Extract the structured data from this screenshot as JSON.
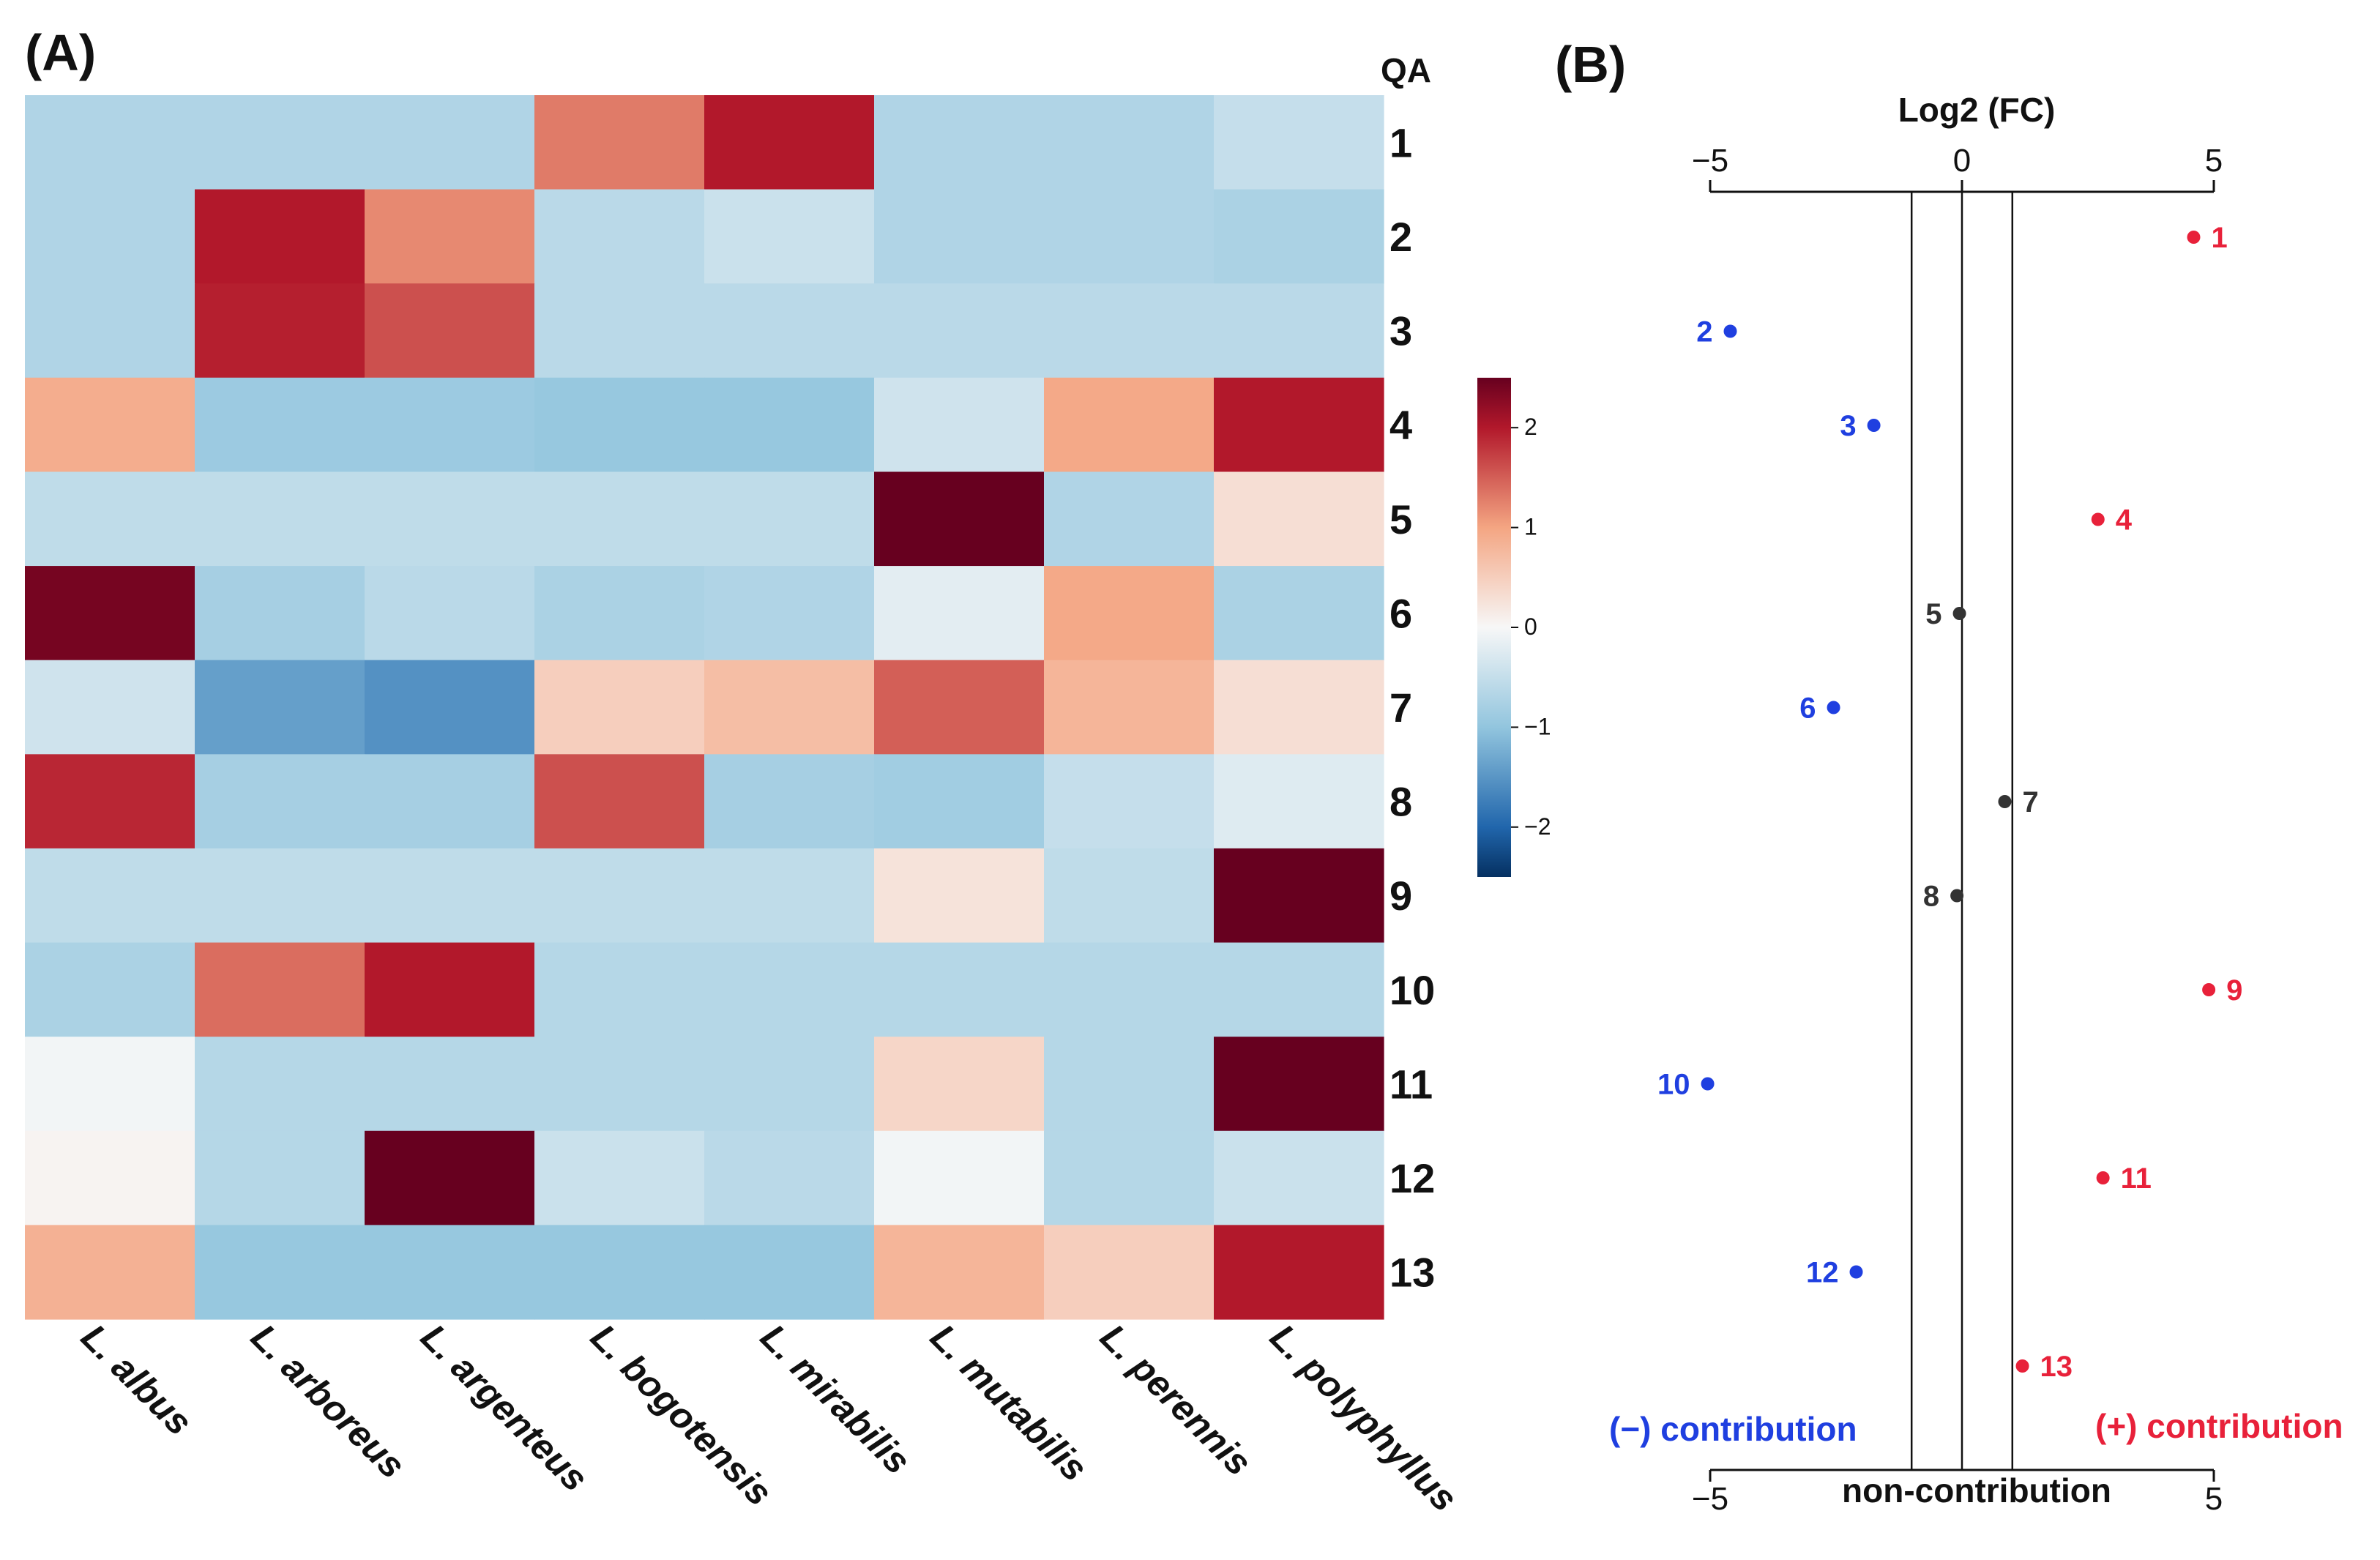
{
  "panel_a": {
    "label": "(A)",
    "row_header": "QA",
    "colorbar_ticks": [
      "2",
      "1",
      "0",
      "−1",
      "−2"
    ]
  },
  "panel_b": {
    "label": "(B)",
    "axis_title": "Log2 (FC)",
    "top_tick_labels": [
      "−5",
      "0",
      "5"
    ],
    "bottom_tick_labels": [
      "−5",
      "5"
    ],
    "neg_label": "(−) contribution",
    "pos_label": "(+) contribution",
    "non_label": "non-contribution"
  },
  "colors": {
    "negative": "#1f3fe0",
    "positive": "#e8213a",
    "neutral": "#333333"
  },
  "chart_data": [
    {
      "type": "heatmap",
      "title": "",
      "columns": [
        "L. albus",
        "L. arboreus",
        "L. argenteus",
        "L. bogotensis",
        "L. mirabilis",
        "L. mutabilis",
        "L. perennis",
        "L. polyphyllus"
      ],
      "rows": [
        "1",
        "2",
        "3",
        "4",
        "5",
        "6",
        "7",
        "8",
        "9",
        "10",
        "11",
        "12",
        "13"
      ],
      "values": [
        [
          -0.7,
          -0.7,
          -0.7,
          1.3,
          2.0,
          -0.7,
          -0.7,
          -0.5
        ],
        [
          -0.7,
          2.0,
          1.2,
          -0.6,
          -0.45,
          -0.7,
          -0.7,
          -0.75
        ],
        [
          -0.7,
          1.95,
          1.6,
          -0.6,
          -0.6,
          -0.6,
          -0.6,
          -0.6
        ],
        [
          0.9,
          -0.9,
          -0.9,
          -0.95,
          -0.95,
          -0.4,
          0.95,
          2.0
        ],
        [
          -0.55,
          -0.55,
          -0.55,
          -0.55,
          -0.55,
          2.5,
          -0.7,
          0.3
        ],
        [
          2.4,
          -0.8,
          -0.6,
          -0.75,
          -0.7,
          -0.2,
          0.95,
          -0.75
        ],
        [
          -0.4,
          -1.4,
          -1.55,
          0.5,
          0.7,
          1.5,
          0.8,
          0.3
        ],
        [
          1.9,
          -0.8,
          -0.8,
          1.6,
          -0.8,
          -0.85,
          -0.5,
          -0.25
        ],
        [
          -0.55,
          -0.55,
          -0.55,
          -0.55,
          -0.55,
          0.25,
          -0.55,
          2.5
        ],
        [
          -0.75,
          1.4,
          2.0,
          -0.65,
          -0.65,
          -0.65,
          -0.65,
          -0.65
        ],
        [
          -0.05,
          -0.65,
          -0.65,
          -0.65,
          -0.65,
          0.4,
          -0.65,
          2.5
        ],
        [
          0.05,
          -0.65,
          2.5,
          -0.45,
          -0.6,
          -0.05,
          -0.65,
          -0.45
        ],
        [
          0.85,
          -0.95,
          -0.95,
          -0.95,
          -0.95,
          0.8,
          0.5,
          2.0
        ]
      ],
      "color_range": [
        -2.5,
        2.5
      ],
      "colorbar_ticks": [
        2,
        1,
        0,
        -1,
        -2
      ],
      "legend_position": "right"
    },
    {
      "type": "scatter",
      "title": "",
      "xlabel": "Log2 (FC)",
      "xlim": [
        -5,
        5
      ],
      "xticks": [
        -5,
        0,
        5
      ],
      "reference_lines": [
        -1,
        0,
        1
      ],
      "points": [
        {
          "label": "1",
          "x": 4.6,
          "group": "positive"
        },
        {
          "label": "2",
          "x": -4.6,
          "group": "negative"
        },
        {
          "label": "3",
          "x": -1.75,
          "group": "negative"
        },
        {
          "label": "4",
          "x": 2.7,
          "group": "positive"
        },
        {
          "label": "5",
          "x": -0.05,
          "group": "neutral"
        },
        {
          "label": "6",
          "x": -2.55,
          "group": "negative"
        },
        {
          "label": "7",
          "x": 0.85,
          "group": "neutral"
        },
        {
          "label": "8",
          "x": -0.1,
          "group": "neutral"
        },
        {
          "label": "9",
          "x": 4.9,
          "group": "positive"
        },
        {
          "label": "10",
          "x": -5.05,
          "group": "negative"
        },
        {
          "label": "11",
          "x": 2.8,
          "group": "positive"
        },
        {
          "label": "12",
          "x": -2.1,
          "group": "negative"
        },
        {
          "label": "13",
          "x": 1.2,
          "group": "positive"
        }
      ]
    }
  ]
}
